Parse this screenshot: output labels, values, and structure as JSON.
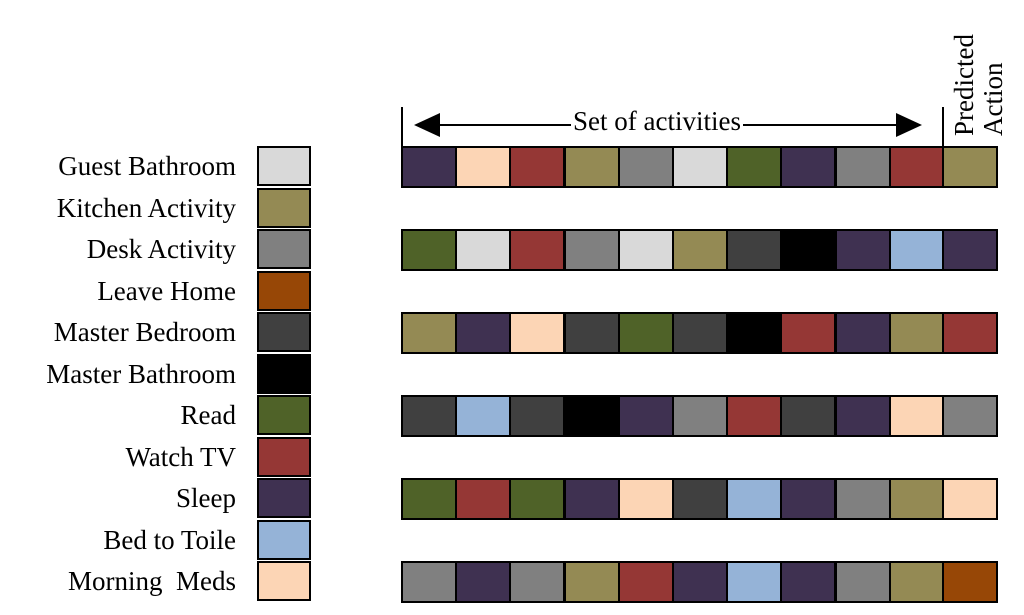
{
  "legend": [
    {
      "label": "Guest Bathroom",
      "color": "#d9d9d9"
    },
    {
      "label": "Kitchen Activity",
      "color": "#948a54"
    },
    {
      "label": "Desk Activity",
      "color": "#808080"
    },
    {
      "label": "Leave Home",
      "color": "#974706"
    },
    {
      "label": "Master Bedroom",
      "color": "#404040"
    },
    {
      "label": "Master Bathroom",
      "color": "#000000"
    },
    {
      "label": "Read",
      "color": "#4f6228"
    },
    {
      "label": "Watch TV",
      "color": "#953735"
    },
    {
      "label": "Sleep",
      "color": "#3f3151"
    },
    {
      "label": "Bed to Toile",
      "color": "#95b3d7"
    },
    {
      "label": "Morning  Meds",
      "color": "#fcd5b5"
    }
  ],
  "header": {
    "set_label": "Set of activities",
    "predicted_line1": "Predicted",
    "predicted_line2": "Action"
  },
  "sequences": [
    {
      "activities": [
        "Sleep",
        "Morning  Meds",
        "Watch TV",
        "Kitchen Activity",
        "Desk Activity",
        "Guest Bathroom",
        "Read",
        "Sleep",
        "Desk Activity",
        "Watch TV"
      ],
      "predicted": "Kitchen Activity"
    },
    {
      "activities": [
        "Read",
        "Guest Bathroom",
        "Watch TV",
        "Desk Activity",
        "Guest Bathroom",
        "Kitchen Activity",
        "Master Bedroom",
        "Master Bathroom",
        "Sleep",
        "Bed to Toile"
      ],
      "predicted": "Sleep"
    },
    {
      "activities": [
        "Kitchen Activity",
        "Sleep",
        "Morning  Meds",
        "Master Bedroom",
        "Read",
        "Master Bedroom",
        "Master Bathroom",
        "Watch TV",
        "Sleep",
        "Kitchen Activity"
      ],
      "predicted": "Watch TV"
    },
    {
      "activities": [
        "Master Bedroom",
        "Bed to Toile",
        "Master Bedroom",
        "Master Bathroom",
        "Sleep",
        "Desk Activity",
        "Watch TV",
        "Master Bedroom",
        "Sleep",
        "Morning  Meds"
      ],
      "predicted": "Desk Activity"
    },
    {
      "activities": [
        "Read",
        "Watch TV",
        "Read",
        "Sleep",
        "Morning  Meds",
        "Master Bedroom",
        "Bed to Toile",
        "Sleep",
        "Desk Activity",
        "Kitchen Activity"
      ],
      "predicted": "Morning  Meds"
    },
    {
      "activities": [
        "Desk Activity",
        "Sleep",
        "Desk Activity",
        "Kitchen Activity",
        "Watch TV",
        "Sleep",
        "Bed to Toile",
        "Sleep",
        "Desk Activity",
        "Kitchen Activity"
      ],
      "predicted": "Leave Home"
    }
  ]
}
